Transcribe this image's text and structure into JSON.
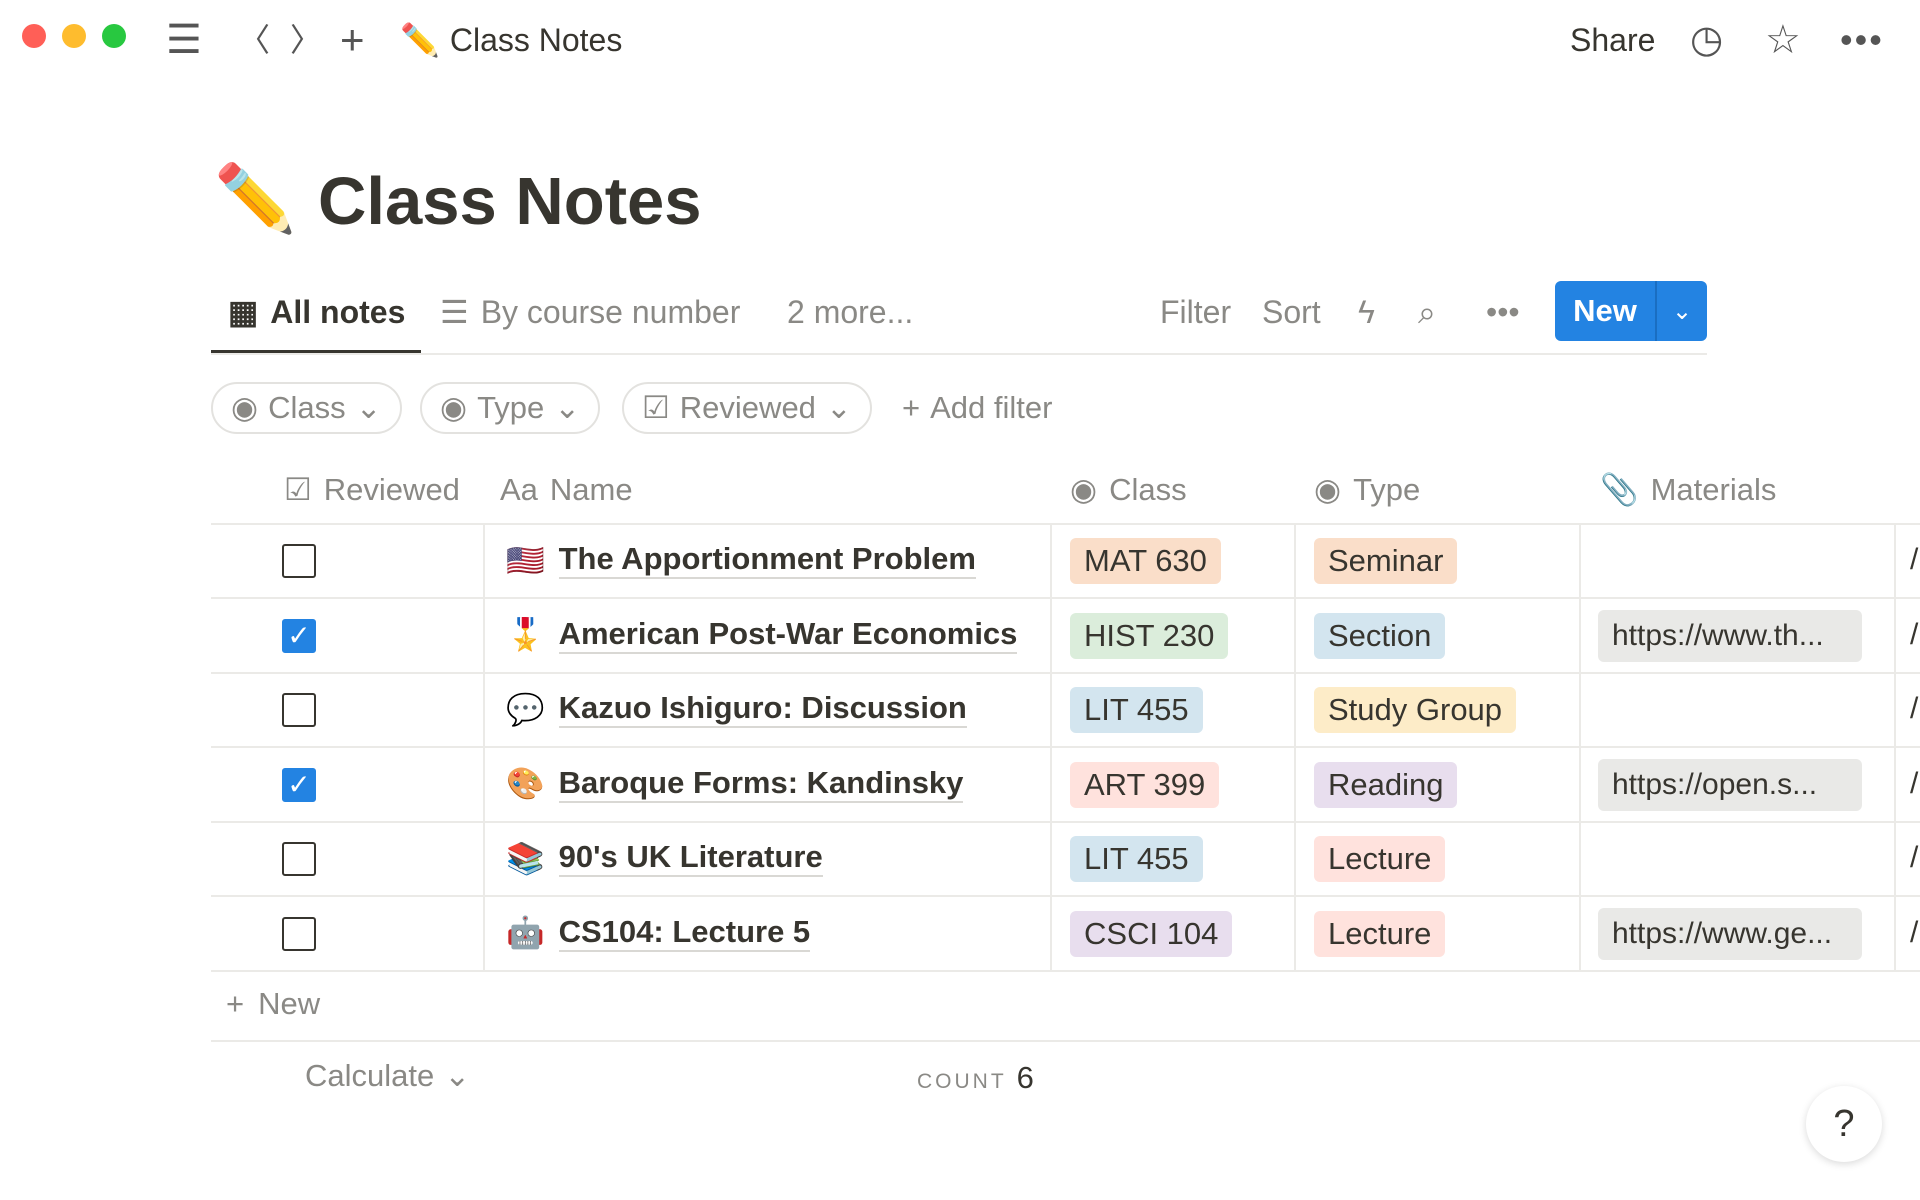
{
  "titlebar": {
    "title": "Class Notes",
    "emoji": "✏️",
    "share": "Share"
  },
  "page": {
    "title": "Class Notes",
    "emoji": "✏️"
  },
  "views": {
    "tabs": [
      {
        "label": "All notes",
        "active": true
      },
      {
        "label": "By course number"
      }
    ],
    "more": "2 more...",
    "filter": "Filter",
    "sort": "Sort",
    "new": "New"
  },
  "filters": [
    {
      "label": "Class"
    },
    {
      "label": "Type"
    },
    {
      "label": "Reviewed"
    }
  ],
  "add_filter": "Add filter",
  "columns": {
    "reviewed": "Reviewed",
    "name_prefix": "Aa",
    "name": "Name",
    "class": "Class",
    "type": "Type",
    "materials": "Materials"
  },
  "rows": [
    {
      "reviewed": false,
      "emoji": "🇺🇸",
      "name": "The Apportionment Problem",
      "class": "MAT 630",
      "class_color": "#fadec9",
      "type": "Seminar",
      "type_color": "#fadec9",
      "materials": ""
    },
    {
      "reviewed": true,
      "emoji": "🎖️",
      "name": "American Post-War Economics",
      "class": "HIST 230",
      "class_color": "#dbeddb",
      "type": "Section",
      "type_color": "#d3e5ef",
      "materials": "https://www.th..."
    },
    {
      "reviewed": false,
      "emoji": "💬",
      "name": "Kazuo Ishiguro: Discussion",
      "class": "LIT 455",
      "class_color": "#d3e5ef",
      "type": "Study Group",
      "type_color": "#fdecc8",
      "materials": ""
    },
    {
      "reviewed": true,
      "emoji": "🎨",
      "name": "Baroque Forms: Kandinsky",
      "class": "ART 399",
      "class_color": "#ffe2dd",
      "type": "Reading",
      "type_color": "#e8deee",
      "materials": "https://open.s..."
    },
    {
      "reviewed": false,
      "emoji": "📚",
      "name": "90's UK Literature",
      "class": "LIT 455",
      "class_color": "#d3e5ef",
      "type": "Lecture",
      "type_color": "#ffe2dd",
      "materials": ""
    },
    {
      "reviewed": false,
      "emoji": "🤖",
      "name": "CS104: Lecture 5",
      "class": "CSCI 104",
      "class_color": "#e8deee",
      "type": "Lecture",
      "type_color": "#ffe2dd",
      "materials": "https://www.ge..."
    }
  ],
  "footer": {
    "new": "New",
    "calculate": "Calculate",
    "count_label": "COUNT",
    "count": "6"
  },
  "help": "?",
  "colors": {
    "accent": "#2383e2"
  }
}
